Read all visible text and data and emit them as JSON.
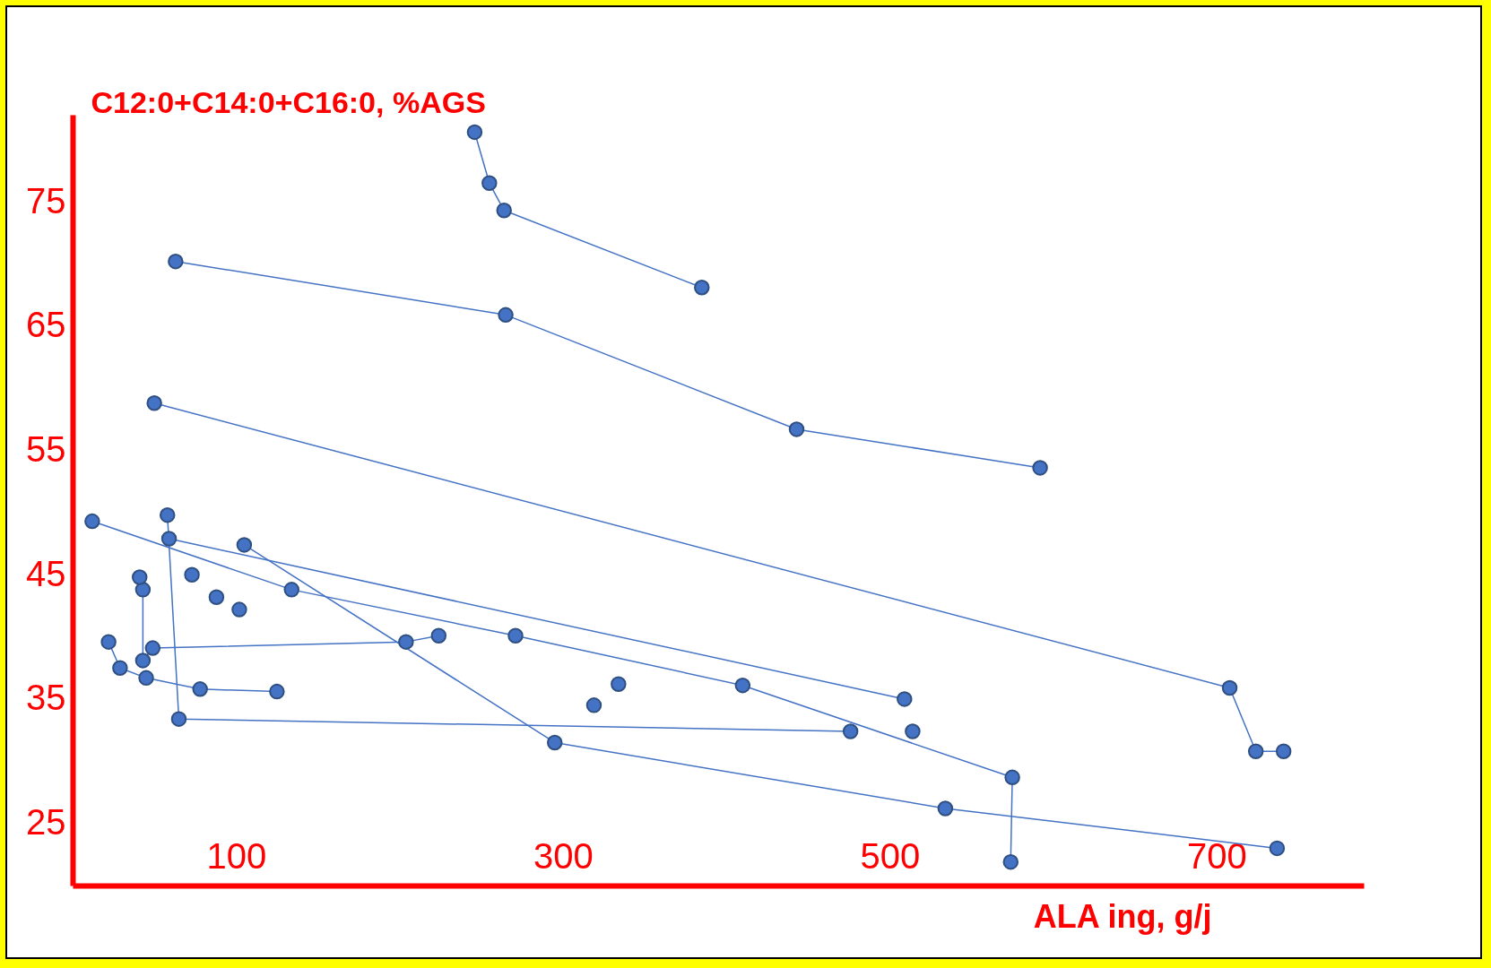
{
  "chart_data": {
    "type": "line",
    "xlabel": "ALA ing, g/j",
    "ylabel": "C12:0+C14:0+C16:0, %AGS",
    "xlim": [
      0,
      790
    ],
    "ylim": [
      20,
      82
    ],
    "xticks": [
      100,
      300,
      500,
      700
    ],
    "yticks": [
      25,
      35,
      45,
      55,
      65,
      75
    ],
    "grid": false,
    "marker": "circle",
    "line_style": "solid",
    "series": [
      {
        "color": "#4472c4",
        "x": [
          246,
          255,
          264,
          385
        ],
        "values": [
          80.6,
          76.5,
          74.3,
          68.1
        ]
      },
      {
        "color": "#4472c4",
        "x": [
          63,
          265,
          443,
          592
        ],
        "values": [
          70.2,
          65.9,
          56.7,
          53.6
        ]
      },
      {
        "color": "#4472c4",
        "x": [
          50,
          708,
          724,
          741
        ],
        "values": [
          58.8,
          35.9,
          30.8,
          30.8
        ]
      },
      {
        "color": "#4472c4",
        "x": [
          12,
          134,
          271,
          410,
          575,
          574
        ],
        "values": [
          49.3,
          43.8,
          40.1,
          36.1,
          28.7,
          21.9
        ]
      },
      {
        "color": "#4472c4",
        "x": [
          58,
          65,
          476
        ],
        "values": [
          49.8,
          33.4,
          32.4
        ]
      },
      {
        "color": "#4472c4",
        "x": [
          59,
          509
        ],
        "values": [
          47.9,
          35.0
        ]
      },
      {
        "color": "#4472c4",
        "x": [
          105,
          295,
          534,
          737
        ],
        "values": [
          47.4,
          31.5,
          26.2,
          23.0
        ]
      },
      {
        "color": "#4472c4",
        "x": [
          22,
          29,
          45,
          78,
          125
        ],
        "values": [
          39.6,
          37.5,
          36.7,
          35.8,
          35.6
        ]
      },
      {
        "color": "#4472c4",
        "x": [
          43,
          43,
          49,
          204,
          224
        ],
        "values": [
          43.8,
          38.1,
          39.1,
          39.6,
          40.1
        ]
      },
      {
        "type": "scatter",
        "color": "#4472c4",
        "x": [
          41,
          73,
          88,
          102,
          319,
          334,
          514
        ],
        "values": [
          44.8,
          45.0,
          43.2,
          42.2,
          34.5,
          36.2,
          32.4
        ]
      }
    ]
  }
}
